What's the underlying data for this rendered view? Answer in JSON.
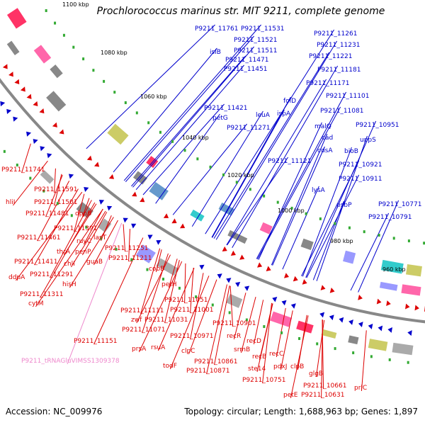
{
  "header": {
    "title": "Prochlorococcus marinus str. MIT 9211, complete genome"
  },
  "footer": {
    "accession": "Accession: NC_009976",
    "summary": "Topology: circular; Length: 1,688,963 bp; Genes: 1,897"
  },
  "colors": {
    "forward_strand": "#0000cc",
    "reverse_strand": "#dd0000",
    "rna": "#ee88cc",
    "backbone": "#888888",
    "tick": "#33aa33"
  },
  "scale_labels": [
    "1100 kbp",
    "1080 kbp",
    "1060 kbp",
    "1040 kbp",
    "1020 kbp",
    "1000 kbp",
    "980 kbp",
    "960 kbp"
  ],
  "forward_genes": [
    "P9211_11761",
    "P9211_11531",
    "P9211_11521",
    "isiB",
    "P9211_11511",
    "P9211_11471",
    "P9211_11451",
    "P9211_11261",
    "P9211_11231",
    "P9211_11221",
    "P9211_11181",
    "P9211_11171",
    "folD",
    "P9211_11101",
    "P9211_11081",
    "P9211_11421",
    "petG",
    "leuA",
    "ispA",
    "P9211_11271",
    "malQ",
    "cad",
    "P9211_10951",
    "uppS",
    "cdsA",
    "bioB",
    "P9211_11121",
    "P9211_10921",
    "P9211_10911",
    "lysA",
    "psbP",
    "P9211_10771",
    "P9211_10791"
  ],
  "reverse_genes": [
    "P9211_11741",
    "P9211_11591",
    "hliI",
    "P9211_11501",
    "P9211_11481",
    "dppB",
    "P9211_11391",
    "P9211_11461",
    "ruvC",
    "lasT",
    "thrA",
    "penP",
    "P9211_11251",
    "chlI",
    "P9211_11411",
    "guaB",
    "P9211_11211",
    "ddpA",
    "P9211_11291",
    "hisH",
    "P9211_11311",
    "cytM",
    "cobB",
    "petH",
    "P9211_11051",
    "P9211_11111",
    "P9211_11001",
    "zwf",
    "P9211_11031",
    "P9211_11071",
    "P9211_10901",
    "P9211_10971",
    "recR",
    "P9211_11151",
    "recD",
    "prsA",
    "rsuA",
    "srmB",
    "clpC",
    "recB",
    "todF",
    "P9211_10861",
    "ste14",
    "recC",
    "P9211_10871",
    "pdxJ",
    "clpB",
    "P9211_10751",
    "glgB",
    "petE",
    "P9211_10661",
    "prlC",
    "P9211_10631"
  ],
  "rna_genes": [
    "P9211_tRNAGluVIMSS1309378"
  ]
}
